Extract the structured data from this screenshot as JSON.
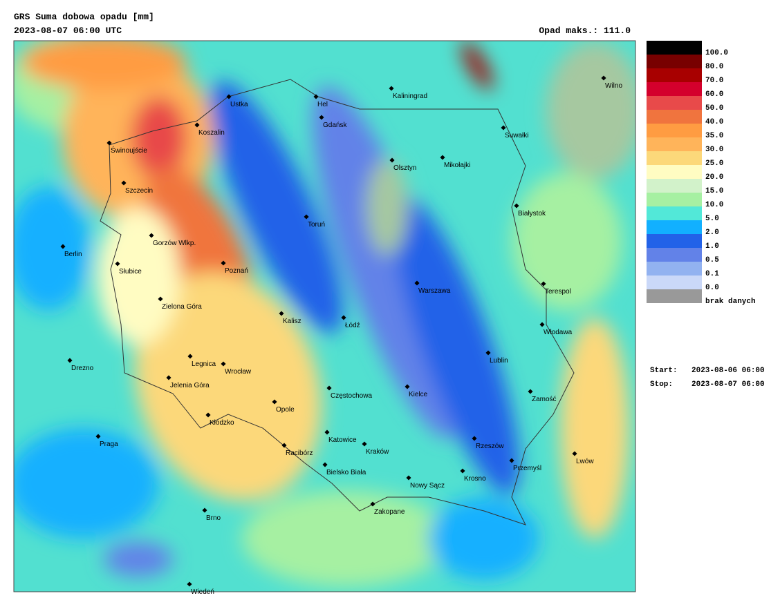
{
  "header": {
    "title": "GRS Suma dobowa opadu [mm]",
    "date": "2023-08-07 06:00 UTC",
    "max": "Opad maks.: 111.0"
  },
  "legend": [
    {
      "label": "100.0",
      "color": "#000000"
    },
    {
      "label": "80.0",
      "color": "#780000"
    },
    {
      "label": "70.0",
      "color": "#a80000"
    },
    {
      "label": "60.0",
      "color": "#d4002c"
    },
    {
      "label": "50.0",
      "color": "#e84a4a"
    },
    {
      "label": "40.0",
      "color": "#f0743e"
    },
    {
      "label": "35.0",
      "color": "#ff9c42"
    },
    {
      "label": "30.0",
      "color": "#ffb45a"
    },
    {
      "label": "25.0",
      "color": "#fcd87a"
    },
    {
      "label": "20.0",
      "color": "#fffcc2"
    },
    {
      "label": "15.0",
      "color": "#d2f2ca"
    },
    {
      "label": "10.0",
      "color": "#a6f0a2"
    },
    {
      "label": "5.0",
      "color": "#52e8d8"
    },
    {
      "label": "2.0",
      "color": "#12b0ff"
    },
    {
      "label": "1.0",
      "color": "#2262e8"
    },
    {
      "label": "0.5",
      "color": "#6282e8"
    },
    {
      "label": "0.1",
      "color": "#92b2f0"
    },
    {
      "label": "0.0",
      "color": "#cad8f8"
    },
    {
      "label": "brak danych",
      "color": "#999999"
    }
  ],
  "period": {
    "start_label": "Start:",
    "start": "2023-08-06 06:00",
    "stop_label": "Stop:",
    "stop": "2023-08-07 06:00"
  },
  "cities": [
    "Ustka",
    "Hel",
    "Kaliningrad",
    "Wilno",
    "Koszalin",
    "Gdańsk",
    "Suwałki",
    "Świnoujście",
    "Olsztyn",
    "Mikołajki",
    "Szczecin",
    "Białystok",
    "Toruń",
    "Gorzów Wlkp.",
    "Berlin",
    "Poznań",
    "Słubice",
    "Warszawa",
    "Terespol",
    "Zielona Góra",
    "Kalisz",
    "Łódź",
    "Włodawa",
    "Lublin",
    "Drezno",
    "Legnica",
    "Wrocław",
    "Jelenia Góra",
    "Częstochowa",
    "Kielce",
    "Zamość",
    "Opole",
    "Kłodzko",
    "Katowice",
    "Rzeszów",
    "Praga",
    "Racibórz",
    "Kraków",
    "Lwów",
    "Przemyśl",
    "Bielsko Biała",
    "Krosno",
    "Nowy Sącz",
    "Zakopane",
    "Brno",
    "Wiedeń"
  ]
}
